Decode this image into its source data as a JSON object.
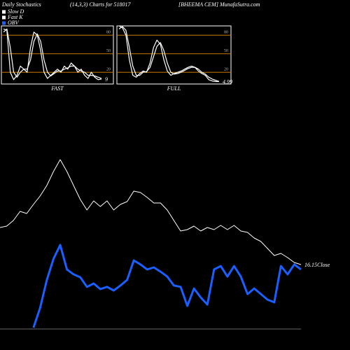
{
  "header": {
    "left": "Daily Stochastics",
    "middle": "(14,3,3) Charts for 518017",
    "right": "[BHEEMA CEM] MunafaSutra.com"
  },
  "legend": [
    {
      "name": "Slow D",
      "color": "#ffffff"
    },
    {
      "name": "Fast K",
      "color": "#ffffff"
    },
    {
      "name": "OBV",
      "color": "#1a5fff"
    }
  ],
  "chart_data": [
    {
      "type": "line",
      "title": "FAST",
      "ylim": [
        1,
        95
      ],
      "yticks": [
        20,
        50,
        80
      ],
      "grid_color": "#c87800",
      "annotation": "9",
      "series": [
        {
          "name": "Fast K",
          "color": "#ffffff",
          "values": [
            90,
            88,
            20,
            8,
            15,
            30,
            25,
            20,
            60,
            85,
            80,
            55,
            20,
            10,
            15,
            20,
            25,
            20,
            30,
            25,
            35,
            30,
            20,
            25,
            15,
            10,
            20,
            12,
            8,
            9
          ]
        },
        {
          "name": "Slow D",
          "color": "#ffffff",
          "values": [
            85,
            90,
            60,
            20,
            12,
            20,
            25,
            25,
            40,
            70,
            82,
            70,
            40,
            20,
            14,
            18,
            22,
            22,
            25,
            27,
            30,
            30,
            25,
            22,
            20,
            15,
            15,
            14,
            12,
            10
          ]
        }
      ]
    },
    {
      "type": "line",
      "title": "FULL",
      "ylim": [
        1,
        95
      ],
      "yticks": [
        20,
        50,
        80
      ],
      "grid_color": "#c87800",
      "annotation": "4.99",
      "series": [
        {
          "name": "Fast K",
          "color": "#ffffff",
          "values": [
            95,
            92,
            80,
            40,
            15,
            12,
            18,
            22,
            20,
            35,
            60,
            72,
            65,
            40,
            22,
            15,
            18,
            20,
            22,
            25,
            28,
            30,
            28,
            22,
            18,
            15,
            8,
            6,
            5,
            5
          ]
        },
        {
          "name": "Slow D",
          "color": "#ffffff",
          "values": [
            90,
            94,
            88,
            60,
            30,
            15,
            15,
            20,
            21,
            28,
            45,
            62,
            68,
            55,
            35,
            20,
            17,
            18,
            20,
            23,
            26,
            28,
            28,
            25,
            20,
            17,
            12,
            9,
            7,
            5
          ]
        }
      ]
    },
    {
      "type": "line",
      "ylim": [
        12.47,
        25.27
      ],
      "y2lim": [
        0,
        100
      ],
      "annotation": "16.15Close",
      "series": [
        {
          "name": "Close",
          "color": "#ffffff",
          "values": [
            18.27,
            18.35,
            18.67,
            19.19,
            19.07,
            19.59,
            20.07,
            20.67,
            21.47,
            22.15,
            21.47,
            20.67,
            19.87,
            19.27,
            19.79,
            19.47,
            19.79,
            19.27,
            19.59,
            19.75,
            20.35,
            20.27,
            19.99,
            19.67,
            19.67,
            19.27,
            18.67,
            18.07,
            18.15,
            18.35,
            18.07,
            18.27,
            18.15,
            18.39,
            18.15,
            18.39,
            18.07,
            17.99,
            17.67,
            17.47,
            17.07,
            16.67,
            16.79,
            16.55,
            16.27,
            16.15
          ]
        },
        {
          "name": "OBV",
          "color": "#1a5fff",
          "axis": "y2",
          "values": [
            null,
            null,
            null,
            null,
            null,
            0.6,
            9.4,
            21.9,
            31.3,
            37.5,
            26.6,
            24.4,
            23.1,
            18.8,
            20.3,
            17.8,
            18.8,
            17.2,
            19.4,
            21.9,
            30.6,
            28.8,
            26.6,
            27.5,
            25.6,
            23.4,
            19.4,
            18.8,
            10.3,
            18.1,
            14.1,
            10.9,
            26.6,
            28.1,
            23.4,
            28.1,
            23.4,
            15.6,
            18.1,
            15.6,
            13.1,
            11.9,
            28.1,
            24.4,
            28.8,
            26.6
          ]
        }
      ]
    }
  ]
}
